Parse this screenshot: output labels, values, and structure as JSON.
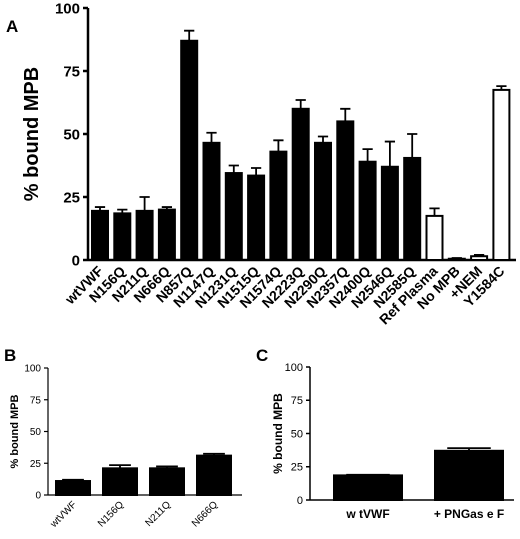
{
  "panels": [
    {
      "label": "A"
    },
    {
      "label": "B"
    },
    {
      "label": "C"
    }
  ],
  "chart_data": [
    {
      "panel": "A",
      "type": "bar",
      "ylabel": "% bound MPB",
      "xlabel": "",
      "ylim": [
        0,
        100
      ],
      "yticks": [
        0,
        25,
        50,
        75,
        100
      ],
      "categories": [
        "wtVWF",
        "N156Q",
        "N211Q",
        "N666Q",
        "N857Q",
        "N1147Q",
        "N1231Q",
        "N1515Q",
        "N1574Q",
        "N2223Q",
        "N2290Q",
        "N2357Q",
        "N2400Q",
        "N2546Q",
        "N2585Q",
        "Ref Plasma",
        "No MPB",
        "+NEM",
        "Y1584C"
      ],
      "values": [
        19.5,
        18.5,
        19.5,
        20.0,
        87.0,
        46.5,
        34.5,
        33.5,
        43.0,
        60.0,
        46.5,
        55.0,
        39.0,
        37.0,
        40.5,
        17.5,
        0.5,
        1.5,
        67.5
      ],
      "errors": [
        1.5,
        1.5,
        5.5,
        1.0,
        4.0,
        4.0,
        3.0,
        3.0,
        4.5,
        3.5,
        2.5,
        5.0,
        5.0,
        10.0,
        9.5,
        3.0,
        0.3,
        0.5,
        1.5
      ],
      "fills": [
        "#000000",
        "#000000",
        "#000000",
        "#000000",
        "#000000",
        "#000000",
        "#000000",
        "#000000",
        "#000000",
        "#000000",
        "#000000",
        "#000000",
        "#000000",
        "#000000",
        "#000000",
        "#ffffff",
        "#ffffff",
        "#ffffff",
        "#ffffff"
      ],
      "grid": false,
      "legend": "none"
    },
    {
      "panel": "B",
      "type": "bar",
      "ylabel": "% bound MPB",
      "xlabel": "",
      "ylim": [
        0,
        100
      ],
      "yticks": [
        0,
        25,
        50,
        75,
        100
      ],
      "categories": [
        "wtVWF",
        "N156Q",
        "N211Q",
        "N666Q"
      ],
      "values": [
        11,
        21,
        21,
        31
      ],
      "errors": [
        1,
        2.5,
        1.5,
        1.5
      ],
      "fills": [
        "#000000",
        "#000000",
        "#000000",
        "#000000"
      ],
      "grid": false,
      "legend": "none"
    },
    {
      "panel": "C",
      "type": "bar",
      "ylabel": "% bound MPB",
      "xlabel": "",
      "ylim": [
        0,
        100
      ],
      "yticks": [
        0,
        25,
        50,
        75,
        100
      ],
      "categories": [
        "w tVWF",
        "+ PNGas e F"
      ],
      "values": [
        18.5,
        37
      ],
      "errors": [
        0.5,
        2
      ],
      "fills": [
        "#000000",
        "#000000"
      ],
      "grid": false,
      "legend": "none"
    }
  ]
}
